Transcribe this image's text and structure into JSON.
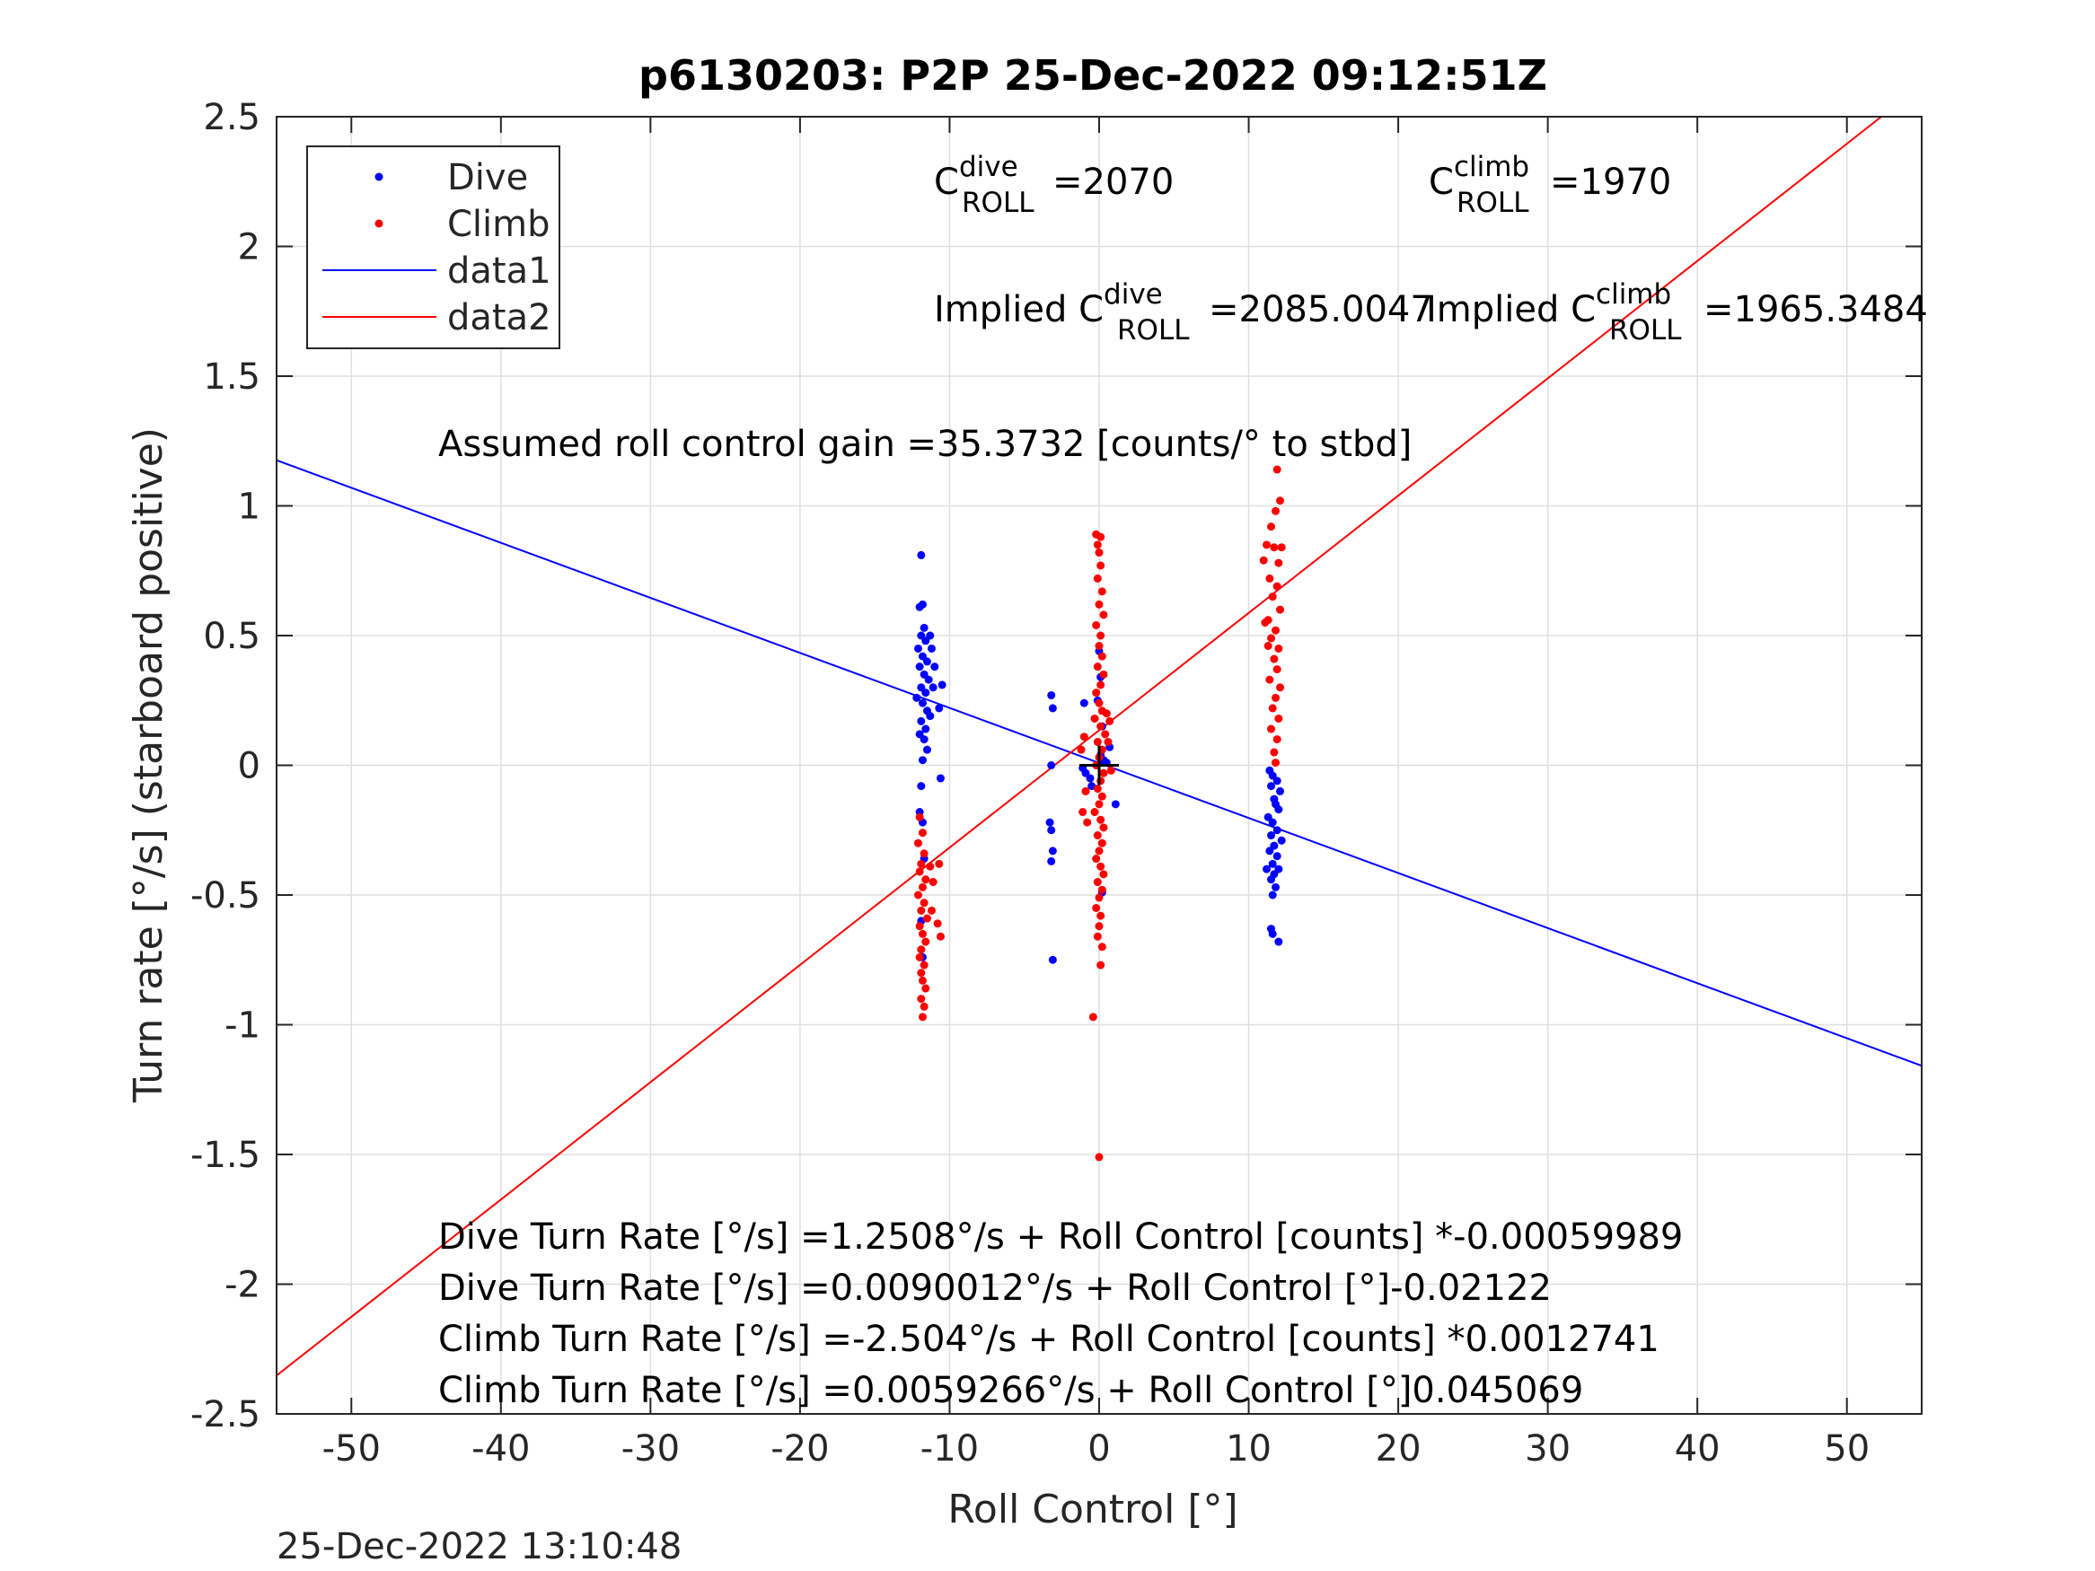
{
  "chart_data": {
    "type": "scatter",
    "title": "p6130203: P2P 25-Dec-2022 09:12:51Z",
    "xlabel": "Roll Control [°]",
    "ylabel": "Turn rate [°/s] (starboard positive)",
    "xlim": [
      -55,
      55
    ],
    "ylim": [
      -2.5,
      2.5
    ],
    "xticks": [
      -50,
      -40,
      -30,
      -20,
      -10,
      0,
      10,
      20,
      30,
      40,
      50
    ],
    "yticks": [
      -2.5,
      -2,
      -1.5,
      -1,
      -0.5,
      0,
      0.5,
      1,
      1.5,
      2,
      2.5
    ],
    "grid": true,
    "legend_position": "top-left",
    "legend": [
      {
        "label": "Dive",
        "kind": "marker",
        "color": "#0000ff"
      },
      {
        "label": "Climb",
        "kind": "marker",
        "color": "#ff0000"
      },
      {
        "label": "data1",
        "kind": "line",
        "color": "#0000ff"
      },
      {
        "label": "data2",
        "kind": "line",
        "color": "#ff0000"
      }
    ],
    "lines": [
      {
        "name": "data1",
        "color": "#0000ff",
        "x": [
          -55,
          55
        ],
        "y": [
          1.176,
          -1.158
        ]
      },
      {
        "name": "data2",
        "color": "#ff0000",
        "x": [
          -55,
          52.3
        ],
        "y": [
          -2.352,
          2.5
        ]
      }
    ],
    "series": [
      {
        "name": "Dive",
        "color": "#0000ff",
        "points": [
          [
            -11.9,
            0.81
          ],
          [
            -11.8,
            0.62
          ],
          [
            -12.0,
            0.61
          ],
          [
            -11.7,
            0.53
          ],
          [
            -11.9,
            0.5
          ],
          [
            -11.6,
            0.48
          ],
          [
            -12.1,
            0.45
          ],
          [
            -11.8,
            0.42
          ],
          [
            -11.5,
            0.4
          ],
          [
            -12.0,
            0.38
          ],
          [
            -11.7,
            0.35
          ],
          [
            -11.4,
            0.33
          ],
          [
            -11.9,
            0.3
          ],
          [
            -11.6,
            0.28
          ],
          [
            -12.2,
            0.26
          ],
          [
            -11.8,
            0.24
          ],
          [
            -11.5,
            0.21
          ],
          [
            -11.3,
            0.19
          ],
          [
            -11.9,
            0.17
          ],
          [
            -11.6,
            0.14
          ],
          [
            -12.0,
            0.12
          ],
          [
            -11.7,
            0.1
          ],
          [
            -11.5,
            0.06
          ],
          [
            -11.8,
            0.02
          ],
          [
            -11.2,
            0.45
          ],
          [
            -11.0,
            0.38
          ],
          [
            -11.1,
            0.3
          ],
          [
            -10.7,
            0.22
          ],
          [
            -10.5,
            0.31
          ],
          [
            -11.3,
            0.5
          ],
          [
            -10.6,
            -0.05
          ],
          [
            -11.9,
            -0.08
          ],
          [
            -12.0,
            -0.18
          ],
          [
            -11.8,
            -0.22
          ],
          [
            -11.7,
            -0.36
          ],
          [
            -11.9,
            -0.6
          ],
          [
            -11.8,
            -0.74
          ],
          [
            -3.2,
            0.27
          ],
          [
            -3.1,
            0.22
          ],
          [
            -3.2,
            0.0
          ],
          [
            -3.3,
            -0.22
          ],
          [
            -3.2,
            -0.25
          ],
          [
            -3.1,
            -0.33
          ],
          [
            -3.2,
            -0.37
          ],
          [
            -3.1,
            -0.75
          ],
          [
            -1.0,
            0.24
          ],
          [
            -1.1,
            -0.01
          ],
          [
            -0.9,
            -0.03
          ],
          [
            -0.6,
            -0.05
          ],
          [
            -0.5,
            -0.08
          ],
          [
            0.0,
            0.44
          ],
          [
            0.1,
            0.34
          ],
          [
            -0.1,
            0.25
          ],
          [
            0.2,
            0.15
          ],
          [
            0.1,
            0.04
          ],
          [
            0.3,
            0.02
          ],
          [
            0.5,
            0.01
          ],
          [
            0.7,
            0.07
          ],
          [
            1.1,
            -0.15
          ],
          [
            0.2,
            -0.49
          ],
          [
            11.4,
            -0.02
          ],
          [
            11.6,
            -0.04
          ],
          [
            11.9,
            -0.06
          ],
          [
            11.5,
            -0.08
          ],
          [
            12.1,
            -0.1
          ],
          [
            11.7,
            -0.13
          ],
          [
            11.8,
            -0.15
          ],
          [
            12.0,
            -0.17
          ],
          [
            11.3,
            -0.2
          ],
          [
            11.6,
            -0.22
          ],
          [
            11.9,
            -0.25
          ],
          [
            11.5,
            -0.27
          ],
          [
            12.2,
            -0.29
          ],
          [
            11.7,
            -0.31
          ],
          [
            11.4,
            -0.33
          ],
          [
            11.9,
            -0.35
          ],
          [
            11.6,
            -0.38
          ],
          [
            12.0,
            -0.4
          ],
          [
            11.7,
            -0.42
          ],
          [
            11.5,
            -0.44
          ],
          [
            11.8,
            -0.47
          ],
          [
            11.6,
            -0.5
          ],
          [
            11.2,
            -0.4
          ],
          [
            11.5,
            -0.63
          ],
          [
            11.6,
            -0.65
          ],
          [
            12.0,
            -0.68
          ]
        ]
      },
      {
        "name": "Climb",
        "color": "#ff0000",
        "points": [
          [
            -12.0,
            -0.2
          ],
          [
            -11.8,
            -0.26
          ],
          [
            -12.1,
            -0.3
          ],
          [
            -11.7,
            -0.34
          ],
          [
            -11.9,
            -0.38
          ],
          [
            -12.0,
            -0.41
          ],
          [
            -11.6,
            -0.44
          ],
          [
            -11.8,
            -0.47
          ],
          [
            -12.1,
            -0.5
          ],
          [
            -11.7,
            -0.53
          ],
          [
            -11.9,
            -0.56
          ],
          [
            -11.5,
            -0.59
          ],
          [
            -12.0,
            -0.62
          ],
          [
            -11.8,
            -0.65
          ],
          [
            -11.6,
            -0.68
          ],
          [
            -11.9,
            -0.71
          ],
          [
            -12.0,
            -0.74
          ],
          [
            -11.7,
            -0.77
          ],
          [
            -11.9,
            -0.8
          ],
          [
            -11.8,
            -0.83
          ],
          [
            -11.6,
            -0.86
          ],
          [
            -11.9,
            -0.9
          ],
          [
            -11.7,
            -0.93
          ],
          [
            -11.8,
            -0.97
          ],
          [
            -11.3,
            -0.39
          ],
          [
            -11.1,
            -0.45
          ],
          [
            -11.2,
            -0.56
          ],
          [
            -10.8,
            -0.61
          ],
          [
            -10.6,
            -0.66
          ],
          [
            -10.7,
            -0.38
          ],
          [
            -1.0,
            0.11
          ],
          [
            -1.2,
            0.06
          ],
          [
            -0.9,
            -0.1
          ],
          [
            -1.1,
            -0.18
          ],
          [
            -0.8,
            -0.22
          ],
          [
            -0.2,
            0.89
          ],
          [
            -0.1,
            0.85
          ],
          [
            0.1,
            0.88
          ],
          [
            0.0,
            0.82
          ],
          [
            0.1,
            0.77
          ],
          [
            -0.1,
            0.72
          ],
          [
            0.2,
            0.67
          ],
          [
            0.0,
            0.62
          ],
          [
            0.3,
            0.58
          ],
          [
            -0.2,
            0.54
          ],
          [
            0.1,
            0.5
          ],
          [
            0.0,
            0.46
          ],
          [
            0.2,
            0.42
          ],
          [
            -0.1,
            0.38
          ],
          [
            0.3,
            0.35
          ],
          [
            0.1,
            0.31
          ],
          [
            -0.2,
            0.28
          ],
          [
            0.0,
            0.24
          ],
          [
            0.2,
            0.21
          ],
          [
            -0.3,
            0.18
          ],
          [
            0.1,
            0.15
          ],
          [
            0.4,
            0.12
          ],
          [
            -0.1,
            0.09
          ],
          [
            0.2,
            0.06
          ],
          [
            0.0,
            0.03
          ],
          [
            -0.2,
            0.0
          ],
          [
            0.3,
            -0.03
          ],
          [
            0.1,
            -0.06
          ],
          [
            -0.1,
            -0.09
          ],
          [
            0.2,
            -0.12
          ],
          [
            0.0,
            -0.15
          ],
          [
            -0.3,
            -0.18
          ],
          [
            0.1,
            -0.21
          ],
          [
            0.3,
            -0.24
          ],
          [
            -0.1,
            -0.27
          ],
          [
            0.2,
            -0.3
          ],
          [
            0.0,
            -0.33
          ],
          [
            -0.2,
            -0.36
          ],
          [
            0.1,
            -0.39
          ],
          [
            0.3,
            -0.42
          ],
          [
            -0.1,
            -0.45
          ],
          [
            0.2,
            -0.48
          ],
          [
            0.0,
            -0.51
          ],
          [
            -0.2,
            -0.55
          ],
          [
            0.1,
            -0.58
          ],
          [
            0.0,
            -0.62
          ],
          [
            -0.1,
            -0.66
          ],
          [
            0.2,
            -0.7
          ],
          [
            0.1,
            -0.77
          ],
          [
            -0.4,
            -0.97
          ],
          [
            0.0,
            -1.51
          ],
          [
            0.5,
            0.2
          ],
          [
            0.7,
            0.17
          ],
          [
            0.6,
            0.09
          ],
          [
            0.8,
            -0.02
          ],
          [
            11.9,
            1.14
          ],
          [
            12.1,
            1.02
          ],
          [
            11.8,
            0.98
          ],
          [
            11.5,
            0.92
          ],
          [
            11.2,
            0.85
          ],
          [
            11.7,
            0.84
          ],
          [
            12.0,
            0.78
          ],
          [
            11.4,
            0.72
          ],
          [
            11.9,
            0.69
          ],
          [
            11.6,
            0.65
          ],
          [
            12.1,
            0.6
          ],
          [
            11.3,
            0.56
          ],
          [
            11.8,
            0.52
          ],
          [
            11.5,
            0.49
          ],
          [
            12.0,
            0.45
          ],
          [
            11.7,
            0.41
          ],
          [
            11.9,
            0.37
          ],
          [
            11.4,
            0.33
          ],
          [
            12.1,
            0.3
          ],
          [
            11.8,
            0.26
          ],
          [
            11.6,
            0.22
          ],
          [
            12.0,
            0.18
          ],
          [
            11.5,
            0.14
          ],
          [
            11.9,
            0.1
          ],
          [
            11.7,
            0.05
          ],
          [
            11.8,
            0.01
          ],
          [
            11.1,
            0.55
          ],
          [
            11.3,
            0.46
          ],
          [
            12.2,
            0.84
          ],
          [
            11.0,
            0.79
          ]
        ]
      }
    ],
    "marker": {
      "label": "+",
      "x": 0,
      "y": 0
    },
    "annotations": [
      {
        "base": "C",
        "sup": "dive",
        "sub": "ROLL",
        "value": "=2070"
      },
      {
        "base": "C",
        "sup": "climb",
        "sub": "ROLL",
        "value": "=1970"
      },
      {
        "prefix": "Implied ",
        "base": "C",
        "sup": "dive",
        "sub": "ROLL",
        "value": "=2085.0047"
      },
      {
        "prefix": "Implied ",
        "base": "C",
        "sup": "climb",
        "sub": "ROLL",
        "value": "=1965.3484"
      }
    ],
    "gain_text": "Assumed roll control gain =35.3732 [counts/° to stbd]",
    "fit_lines": [
      "Dive Turn Rate [°/s] =1.2508°/s + Roll Control [counts] *-0.00059989",
      "Dive Turn Rate [°/s] =0.0090012°/s + Roll Control [°]-0.02122",
      "Climb Turn Rate [°/s] =-2.504°/s + Roll Control [counts] *0.0012741",
      "Climb Turn Rate [°/s] =0.0059266°/s + Roll Control [°]0.045069"
    ]
  },
  "footer_timestamp": "25-Dec-2022 13:10:48"
}
